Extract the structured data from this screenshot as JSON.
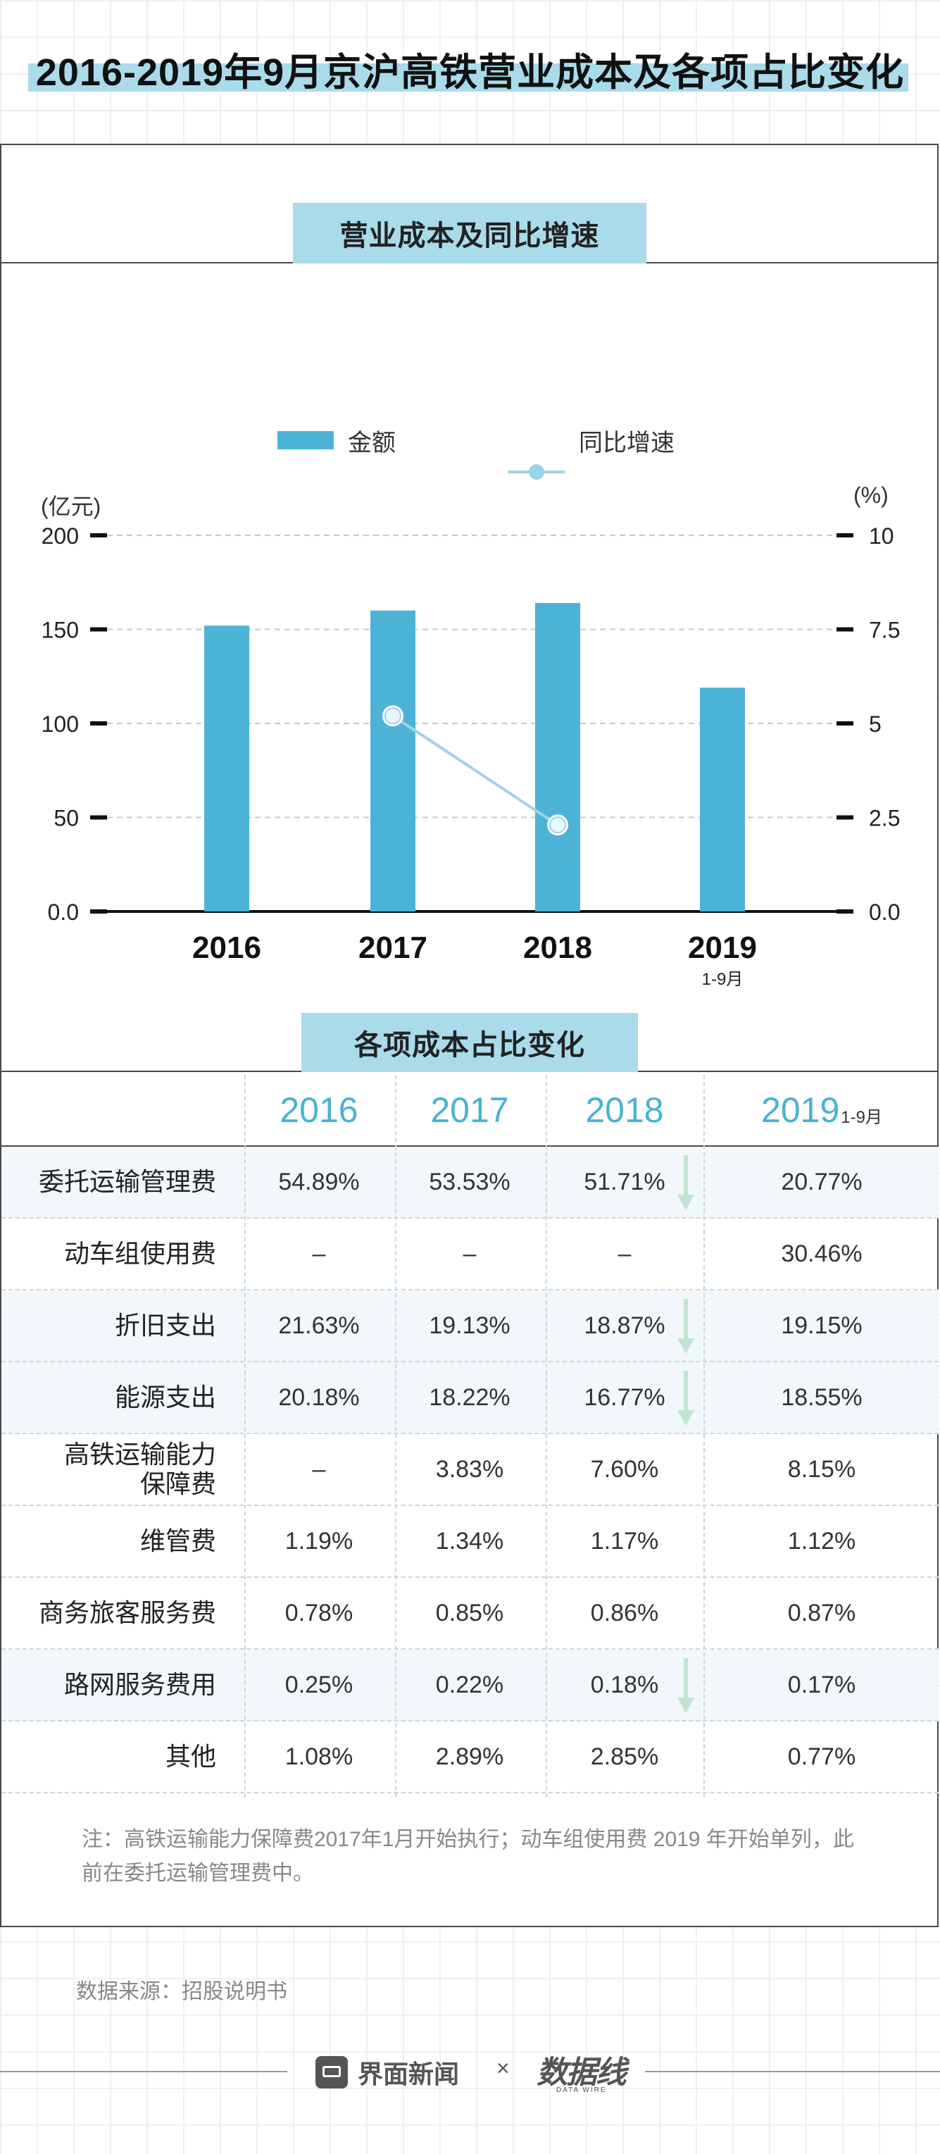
{
  "page_title": "2016-2019年9月京沪高铁营业成本及各项占比变化",
  "colors": {
    "bar": "#4cb3d6",
    "line": "#9dd3e6",
    "header_text": "#48b2d4",
    "band": "#a9dbeb",
    "arrow": "#bfe6d2"
  },
  "section_chart": {
    "label": "营业成本及同比增速"
  },
  "section_table": {
    "label": "各项成本占比变化"
  },
  "chart_data": {
    "type": "bar+line",
    "legend": [
      "金额",
      "同比增速"
    ],
    "left_axis_unit": "(亿元)",
    "right_axis_unit": "(%)",
    "left_ticks": [
      "0.0",
      "50",
      "100",
      "150",
      "200"
    ],
    "right_ticks": [
      "0.0",
      "2.5",
      "5",
      "7.5",
      "10"
    ],
    "left_ylim": [
      0,
      200
    ],
    "right_ylim": [
      0,
      10
    ],
    "categories": [
      "2016",
      "2017",
      "2018",
      "2019"
    ],
    "category_subtitles": [
      "",
      "",
      "",
      "1-9月"
    ],
    "series": [
      {
        "name": "金额",
        "axis": "left",
        "type": "bar",
        "values": [
          152,
          160,
          164,
          119
        ]
      },
      {
        "name": "同比增速",
        "axis": "right",
        "type": "line",
        "values": [
          null,
          5.2,
          2.3,
          null
        ]
      }
    ]
  },
  "table": {
    "columns": [
      "2016",
      "2017",
      "2018",
      "2019"
    ],
    "last_column_suffix": "1-9月",
    "rows": [
      {
        "label": "委托运输管理费",
        "values": [
          "54.89%",
          "53.53%",
          "51.71%",
          "20.77%"
        ],
        "down_arrow": true,
        "shaded": true
      },
      {
        "label": "动车组使用费",
        "values": [
          "–",
          "–",
          "–",
          "30.46%"
        ],
        "down_arrow": false,
        "shaded": false
      },
      {
        "label": "折旧支出",
        "values": [
          "21.63%",
          "19.13%",
          "18.87%",
          "19.15%"
        ],
        "down_arrow": true,
        "shaded": true
      },
      {
        "label": "能源支出",
        "values": [
          "20.18%",
          "18.22%",
          "16.77%",
          "18.55%"
        ],
        "down_arrow": true,
        "shaded": true
      },
      {
        "label": "高铁运输能力\n保障费",
        "values": [
          "–",
          "3.83%",
          "7.60%",
          "8.15%"
        ],
        "down_arrow": false,
        "shaded": false
      },
      {
        "label": "维管费",
        "values": [
          "1.19%",
          "1.34%",
          "1.17%",
          "1.12%"
        ],
        "down_arrow": false,
        "shaded": false
      },
      {
        "label": "商务旅客服务费",
        "values": [
          "0.78%",
          "0.85%",
          "0.86%",
          "0.87%"
        ],
        "down_arrow": false,
        "shaded": false
      },
      {
        "label": "路网服务费用",
        "values": [
          "0.25%",
          "0.22%",
          "0.18%",
          "0.17%"
        ],
        "down_arrow": true,
        "shaded": true
      },
      {
        "label": "其他",
        "values": [
          "1.08%",
          "2.89%",
          "2.85%",
          "0.77%"
        ],
        "down_arrow": false,
        "shaded": false
      }
    ]
  },
  "note": "注：高铁运输能力保障费2017年1月开始执行；动车组使用费 2019 年开始单列，此前在委托运输管理费中。",
  "source": "数据来源：招股说明书",
  "footer": {
    "brand": "界面新闻",
    "times": "×",
    "partner": "数据线",
    "partner_sub": "DATA WIRE"
  }
}
